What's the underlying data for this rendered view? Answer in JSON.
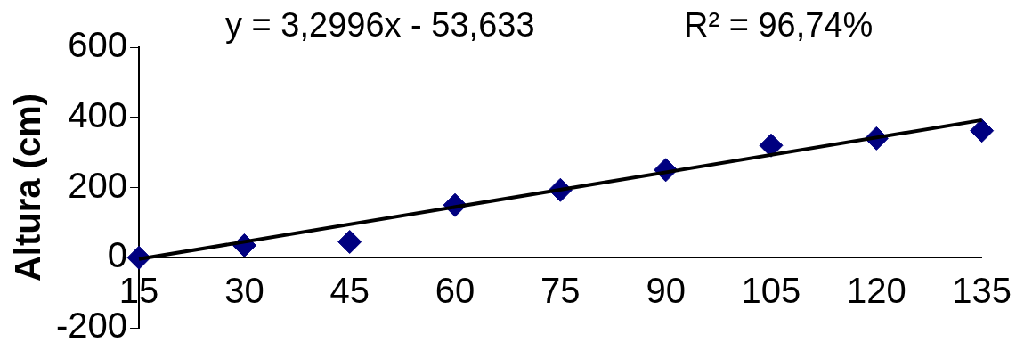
{
  "chart_data": {
    "type": "scatter",
    "ylabel": "Altura (cm)",
    "annotations": [
      "y = 3,2996x - 53,633",
      "R² = 96,74%"
    ],
    "x": [
      15,
      30,
      45,
      60,
      75,
      90,
      105,
      120,
      135
    ],
    "series": [
      {
        "type": "scatter",
        "color": "#000080",
        "marker": "diamond",
        "values": [
          0,
          35,
          45,
          150,
          193,
          250,
          320,
          340,
          362
        ]
      },
      {
        "type": "line",
        "color": "#000000",
        "x": [
          15,
          135
        ],
        "values": [
          -4,
          392
        ],
        "marker": "none",
        "line_style": "solid"
      }
    ],
    "xlim": [
      15,
      135
    ],
    "xticks": [
      15,
      30,
      45,
      60,
      75,
      90,
      105,
      120,
      135
    ],
    "ylim": [
      -200,
      600
    ],
    "yticks": [
      -200,
      0,
      200,
      400,
      600
    ],
    "grid": false,
    "legend": false
  }
}
